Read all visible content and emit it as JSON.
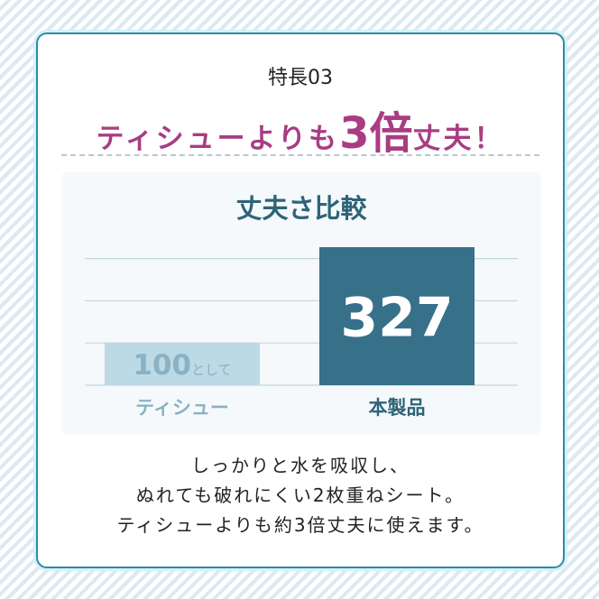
{
  "header": {
    "kicker": "特長03",
    "title_pre": "ティシューよりも",
    "title_big": "3倍",
    "title_post": "丈夫！"
  },
  "colors": {
    "accent": "#a83d83",
    "border": "#2f8ba3",
    "bar_product": "#377089",
    "bar_tissue": "#bcd9e6",
    "tissue_text": "#8ab2c4"
  },
  "chart_data": {
    "type": "bar",
    "title": "丈夫さ比較",
    "categories": [
      "ティシュー",
      "本製品"
    ],
    "values": [
      100,
      327
    ],
    "data_labels": [
      "100",
      "327"
    ],
    "data_label_suffix": "として",
    "ylim": [
      0,
      327
    ],
    "gridlines": [
      100,
      200,
      300
    ],
    "grid": true
  },
  "description": [
    "しっかりと水を吸収し、",
    "ぬれても破れにくい2枚重ねシート。",
    "ティシューよりも約3倍丈夫に使えます。"
  ]
}
